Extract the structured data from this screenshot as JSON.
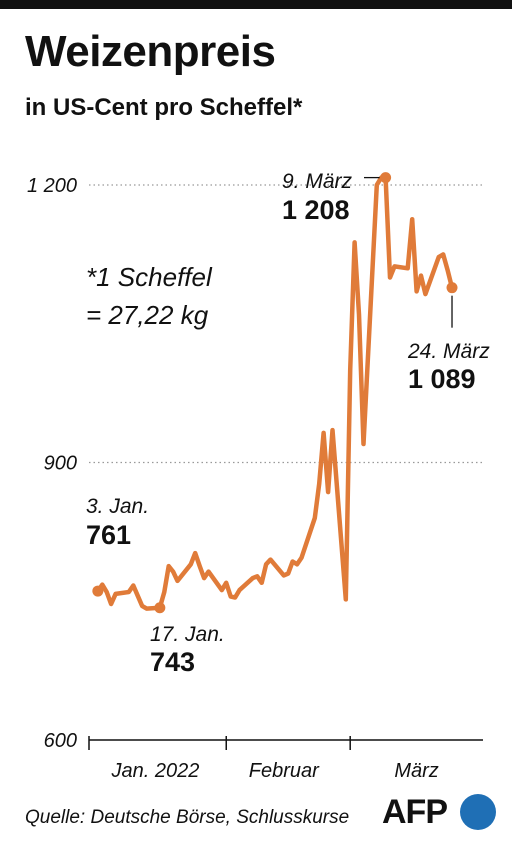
{
  "title": "Weizenpreis",
  "subtitle": "in US-Cent pro Scheffel*",
  "footnote": [
    "*1 Scheffel",
    "= 27,22 kg"
  ],
  "source": "Quelle: Deutsche Börse, Schlusskurse",
  "logo": "AFP",
  "colors": {
    "line": "#e07b39",
    "logo_circle": "#1f6fb5",
    "text": "#111111",
    "grid": "#999999"
  },
  "chart_data": {
    "type": "line",
    "title": "Weizenpreis",
    "subtitle": "in US-Cent pro Scheffel*",
    "ylim": [
      600,
      1200
    ],
    "yticks": [
      600,
      900,
      1200
    ],
    "ytick_labels": [
      "600",
      "900",
      "1 200"
    ],
    "grid": "dotted horizontal at 900 and 1200",
    "xtick_dates": [
      "2022-01-01",
      "2022-02-01",
      "2022-03-01",
      "2022-03-31"
    ],
    "month_labels": [
      {
        "label": "Jan. 2022",
        "mid": "2022-01-16"
      },
      {
        "label": "Februar",
        "mid": "2022-02-14"
      },
      {
        "label": "März",
        "mid": "2022-03-16"
      }
    ],
    "series": [
      {
        "points": [
          [
            "2022-01-03",
            761
          ],
          [
            "2022-01-04",
            768
          ],
          [
            "2022-01-05",
            760
          ],
          [
            "2022-01-06",
            747
          ],
          [
            "2022-01-07",
            758
          ],
          [
            "2022-01-10",
            760
          ],
          [
            "2022-01-11",
            767
          ],
          [
            "2022-01-12",
            756
          ],
          [
            "2022-01-13",
            745
          ],
          [
            "2022-01-14",
            742
          ],
          [
            "2022-01-17",
            743
          ],
          [
            "2022-01-18",
            760
          ],
          [
            "2022-01-19",
            788
          ],
          [
            "2022-01-20",
            782
          ],
          [
            "2022-01-21",
            772
          ],
          [
            "2022-01-24",
            790
          ],
          [
            "2022-01-25",
            802
          ],
          [
            "2022-01-26",
            788
          ],
          [
            "2022-01-27",
            775
          ],
          [
            "2022-01-28",
            782
          ],
          [
            "2022-01-31",
            762
          ],
          [
            "2022-02-01",
            770
          ],
          [
            "2022-02-02",
            755
          ],
          [
            "2022-02-03",
            754
          ],
          [
            "2022-02-04",
            762
          ],
          [
            "2022-02-07",
            775
          ],
          [
            "2022-02-08",
            777
          ],
          [
            "2022-02-09",
            770
          ],
          [
            "2022-02-10",
            790
          ],
          [
            "2022-02-11",
            795
          ],
          [
            "2022-02-14",
            778
          ],
          [
            "2022-02-15",
            780
          ],
          [
            "2022-02-16",
            793
          ],
          [
            "2022-02-17",
            790
          ],
          [
            "2022-02-18",
            797
          ],
          [
            "2022-02-21",
            840
          ],
          [
            "2022-02-22",
            877
          ],
          [
            "2022-02-23",
            932
          ],
          [
            "2022-02-24",
            868
          ],
          [
            "2022-02-25",
            935
          ],
          [
            "2022-02-28",
            752
          ],
          [
            "2022-03-01",
            1000
          ],
          [
            "2022-03-02",
            1138
          ],
          [
            "2022-03-03",
            1060
          ],
          [
            "2022-03-04",
            920
          ],
          [
            "2022-03-07",
            1200
          ],
          [
            "2022-03-08",
            1208
          ],
          [
            "2022-03-09",
            1208
          ],
          [
            "2022-03-10",
            1100
          ],
          [
            "2022-03-11",
            1112
          ],
          [
            "2022-03-14",
            1110
          ],
          [
            "2022-03-15",
            1163
          ],
          [
            "2022-03-16",
            1085
          ],
          [
            "2022-03-17",
            1102
          ],
          [
            "2022-03-18",
            1082
          ],
          [
            "2022-03-21",
            1122
          ],
          [
            "2022-03-22",
            1125
          ],
          [
            "2022-03-23",
            1108
          ],
          [
            "2022-03-24",
            1089
          ]
        ]
      }
    ],
    "annotations": [
      {
        "date": "2022-01-03",
        "value": 761,
        "label": "3. Jan.",
        "value_label": "761"
      },
      {
        "date": "2022-01-17",
        "value": 743,
        "label": "17. Jan.",
        "value_label": "743"
      },
      {
        "date": "2022-03-09",
        "value": 1208,
        "label": "9. März",
        "value_label": "1 208"
      },
      {
        "date": "2022-03-24",
        "value": 1089,
        "label": "24. März",
        "value_label": "1 089"
      }
    ]
  }
}
